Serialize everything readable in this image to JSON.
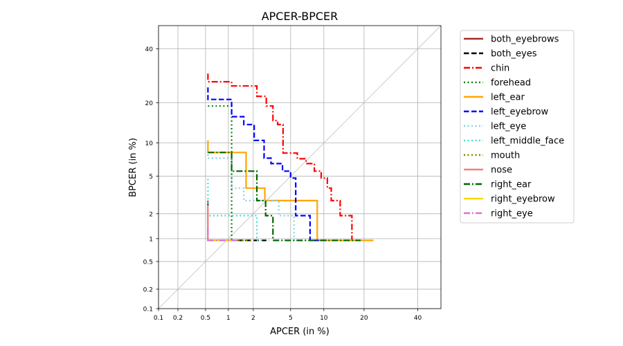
{
  "chart_data": {
    "type": "line",
    "title": "APCER-BPCER",
    "xlabel": "APCER (in %)",
    "ylabel": "BPCER (in %)",
    "scale": "probit",
    "xlim": [
      0.1,
      50
    ],
    "ylim": [
      0.1,
      50
    ],
    "xticks": [
      0.1,
      0.2,
      0.5,
      1,
      2,
      5,
      10,
      20,
      40
    ],
    "yticks": [
      0.1,
      0.2,
      0.5,
      1,
      2,
      5,
      10,
      20,
      40
    ],
    "xtick_labels": [
      "0.1",
      "0.2",
      "0.5",
      "1",
      "2",
      "5",
      "10",
      "20",
      "40"
    ],
    "ytick_labels": [
      "0.1",
      "0.2",
      "0.5",
      "1",
      "2",
      "5",
      "10",
      "20",
      "40"
    ],
    "grid": true,
    "legend_position": "outside right, top",
    "diagonal": true,
    "series": [
      {
        "name": "both_eyebrows",
        "color": "#a52a2a",
        "dash": "solid",
        "points": [
          [
            0.54,
            2.8
          ],
          [
            0.54,
            0.95
          ],
          [
            1.5,
            0.95
          ]
        ]
      },
      {
        "name": "both_eyes",
        "color": "#000000",
        "dash": "dashed",
        "points": [
          [
            0.54,
            0.95
          ],
          [
            3.0,
            0.95
          ]
        ]
      },
      {
        "name": "chin",
        "color": "#ff0000",
        "dash": "dashdot",
        "points": [
          [
            0.54,
            30
          ],
          [
            0.54,
            27
          ],
          [
            1.1,
            27
          ],
          [
            1.1,
            25.5
          ],
          [
            2.2,
            25.5
          ],
          [
            2.2,
            22
          ],
          [
            2.8,
            22
          ],
          [
            2.8,
            19
          ],
          [
            3.3,
            19
          ],
          [
            3.3,
            15
          ],
          [
            3.7,
            15
          ],
          [
            3.7,
            14
          ],
          [
            4.2,
            14
          ],
          [
            4.2,
            8.2
          ],
          [
            5.8,
            8.2
          ],
          [
            5.8,
            7.3
          ],
          [
            7.0,
            7.3
          ],
          [
            7.0,
            6.6
          ],
          [
            8.3,
            6.6
          ],
          [
            8.3,
            5.6
          ],
          [
            9.5,
            5.6
          ],
          [
            9.5,
            4.8
          ],
          [
            10.7,
            4.8
          ],
          [
            10.7,
            3.8
          ],
          [
            11.5,
            3.8
          ],
          [
            11.5,
            2.8
          ],
          [
            13.5,
            2.8
          ],
          [
            13.5,
            1.9
          ],
          [
            16.5,
            1.9
          ],
          [
            16.5,
            0.95
          ],
          [
            18.0,
            0.95
          ]
        ]
      },
      {
        "name": "forehead",
        "color": "#008000",
        "dash": "dotted",
        "points": [
          [
            0.54,
            19
          ],
          [
            1.1,
            19
          ],
          [
            1.1,
            0.95
          ],
          [
            1.7,
            0.95
          ]
        ]
      },
      {
        "name": "left_ear",
        "color": "#ffa500",
        "dash": "solid",
        "points": [
          [
            0.54,
            10.5
          ],
          [
            0.54,
            8.3
          ],
          [
            1.65,
            8.3
          ],
          [
            1.65,
            3.8
          ],
          [
            2.7,
            3.8
          ],
          [
            2.7,
            2.8
          ],
          [
            8.8,
            2.8
          ],
          [
            8.8,
            0.95
          ],
          [
            23.0,
            0.95
          ]
        ]
      },
      {
        "name": "left_eyebrow",
        "color": "#0000ff",
        "dash": "dashed",
        "points": [
          [
            0.54,
            25
          ],
          [
            0.54,
            21
          ],
          [
            1.1,
            21
          ],
          [
            1.1,
            16
          ],
          [
            1.55,
            16
          ],
          [
            1.55,
            14
          ],
          [
            2.05,
            14
          ],
          [
            2.05,
            10.5
          ],
          [
            2.65,
            10.5
          ],
          [
            2.65,
            7.4
          ],
          [
            3.15,
            7.4
          ],
          [
            3.15,
            6.6
          ],
          [
            4.15,
            6.6
          ],
          [
            4.15,
            5.6
          ],
          [
            5.0,
            5.6
          ],
          [
            5.0,
            4.8
          ],
          [
            5.6,
            4.8
          ],
          [
            5.6,
            1.9
          ],
          [
            7.6,
            1.9
          ],
          [
            7.6,
            0.95
          ],
          [
            10.5,
            0.95
          ]
        ]
      },
      {
        "name": "left_eye",
        "color": "#87ceeb",
        "dash": "dotted",
        "points": [
          [
            0.54,
            8.0
          ],
          [
            0.54,
            7.4
          ],
          [
            1.1,
            7.4
          ],
          [
            1.1,
            3.8
          ],
          [
            1.55,
            3.8
          ],
          [
            1.55,
            2.8
          ],
          [
            3.8,
            2.8
          ],
          [
            3.8,
            1.9
          ],
          [
            5.4,
            1.9
          ],
          [
            5.4,
            0.95
          ],
          [
            7.5,
            0.95
          ]
        ]
      },
      {
        "name": "left_middle_face",
        "color": "#40e0d0",
        "dash": "dotted",
        "points": [
          [
            0.54,
            4.7
          ],
          [
            0.54,
            1.9
          ],
          [
            2.2,
            1.9
          ],
          [
            2.2,
            0.95
          ],
          [
            2.6,
            0.95
          ]
        ]
      },
      {
        "name": "mouth",
        "color": "#808000",
        "dash": "dotted",
        "points": [
          [
            0.54,
            0.95
          ],
          [
            2.0,
            0.95
          ]
        ]
      },
      {
        "name": "nose",
        "color": "#f08080",
        "dash": "solid",
        "points": [
          [
            0.54,
            2.4
          ],
          [
            0.54,
            0.95
          ],
          [
            1.2,
            0.95
          ]
        ]
      },
      {
        "name": "right_ear",
        "color": "#006400",
        "dash": "dashdot",
        "points": [
          [
            0.54,
            8.3
          ],
          [
            1.1,
            8.3
          ],
          [
            1.1,
            5.6
          ],
          [
            2.2,
            5.6
          ],
          [
            2.2,
            2.8
          ],
          [
            2.75,
            2.8
          ],
          [
            2.75,
            1.9
          ],
          [
            3.3,
            1.9
          ],
          [
            3.3,
            0.95
          ],
          [
            19.0,
            0.95
          ]
        ]
      },
      {
        "name": "right_eyebrow",
        "color": "#ffd700",
        "dash": "solid",
        "points": [
          [
            0.54,
            0.95
          ],
          [
            1.3,
            0.95
          ]
        ]
      },
      {
        "name": "right_eye",
        "color": "#da70d6",
        "dash": "dashdot",
        "points": [
          [
            0.54,
            1.35
          ],
          [
            0.54,
            0.95
          ],
          [
            1.35,
            0.95
          ]
        ]
      }
    ]
  }
}
